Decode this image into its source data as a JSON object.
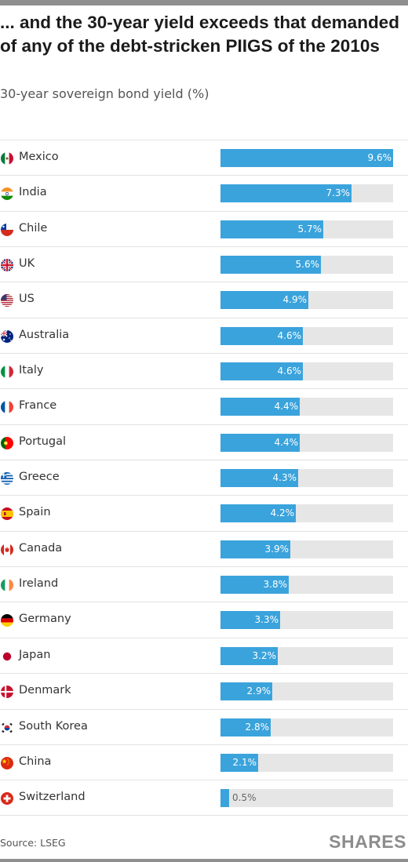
{
  "header": {
    "title": "... and the 30-year yield exceeds that demanded of any of the debt-stricken PIIGS of the 2010s",
    "subtitle": "30-year sovereign bond yield (%)"
  },
  "footer": {
    "source": "Source: LSEG",
    "brand": "SHARES"
  },
  "colors": {
    "bar": "#3aa3dc",
    "track": "#e6e6e6"
  },
  "chart_data": {
    "type": "bar",
    "orientation": "horizontal",
    "categories": [
      "Mexico",
      "India",
      "Chile",
      "UK",
      "US",
      "Australia",
      "Italy",
      "France",
      "Portugal",
      "Greece",
      "Spain",
      "Canada",
      "Ireland",
      "Germany",
      "Japan",
      "Denmark",
      "South Korea",
      "China",
      "Switzerland"
    ],
    "values": [
      9.6,
      7.3,
      5.7,
      5.6,
      4.9,
      4.6,
      4.6,
      4.4,
      4.4,
      4.3,
      4.2,
      3.9,
      3.8,
      3.3,
      3.2,
      2.9,
      2.8,
      2.1,
      0.5
    ],
    "value_labels": [
      "9.6%",
      "7.3%",
      "5.7%",
      "5.6%",
      "4.9%",
      "4.6%",
      "4.6%",
      "4.4%",
      "4.4%",
      "4.3%",
      "4.2%",
      "3.9%",
      "3.8%",
      "3.3%",
      "3.2%",
      "2.9%",
      "2.8%",
      "2.1%",
      "0.5%"
    ],
    "flags": [
      "mexico-flag-icon",
      "india-flag-icon",
      "chile-flag-icon",
      "uk-flag-icon",
      "us-flag-icon",
      "australia-flag-icon",
      "italy-flag-icon",
      "france-flag-icon",
      "portugal-flag-icon",
      "greece-flag-icon",
      "spain-flag-icon",
      "canada-flag-icon",
      "ireland-flag-icon",
      "germany-flag-icon",
      "japan-flag-icon",
      "denmark-flag-icon",
      "south-korea-flag-icon",
      "china-flag-icon",
      "switzerland-flag-icon"
    ],
    "xlim": [
      0,
      9.6
    ],
    "grid": false,
    "legend": "none"
  }
}
